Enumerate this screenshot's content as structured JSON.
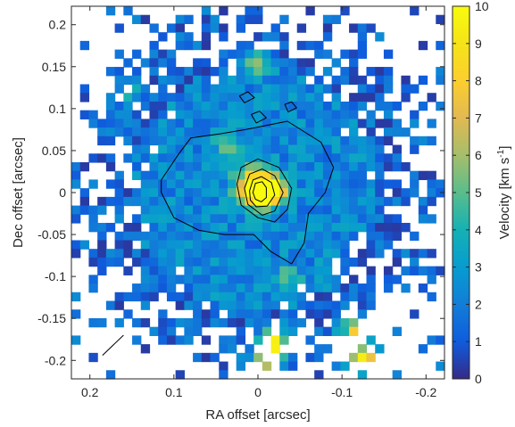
{
  "chart_data": {
    "type": "heatmap",
    "title": "",
    "xlabel": "RA offset [arcsec]",
    "ylabel": "Dec offset [arcsec]",
    "xlim": [
      0.222,
      -0.222
    ],
    "ylim": [
      -0.222,
      0.222
    ],
    "x_reversed": true,
    "x_ticks": [
      0.2,
      0.1,
      0,
      -0.1,
      -0.2
    ],
    "x_tick_labels": [
      "0.2",
      "0.1",
      "0",
      "-0.1",
      "-0.2"
    ],
    "y_ticks": [
      0.2,
      0.15,
      0.1,
      0.05,
      0,
      -0.05,
      -0.1,
      -0.15,
      -0.2
    ],
    "y_tick_labels": [
      "0.2",
      "0.15",
      "0.1",
      "0.05",
      "0",
      "-0.05",
      "-0.1",
      "-0.15",
      "-0.2"
    ],
    "pixel_size_arcsec": 0.0105,
    "colorbar": {
      "label_main": "Velocity [km s",
      "label_sup": "-1",
      "label_end": "]",
      "range": [
        0,
        10
      ],
      "colormap": "parula",
      "ticks": [
        0,
        1,
        2,
        3,
        4,
        5,
        6,
        7,
        8,
        9,
        10
      ],
      "tick_labels": [
        "0",
        "1",
        "2",
        "3",
        "4",
        "5",
        "6",
        "7",
        "8",
        "9",
        "10"
      ]
    },
    "field_model": {
      "base_velocity": 2.3,
      "core": {
        "x": 0.0,
        "y": 0.0,
        "peak": 10.0
      },
      "hotspots": [
        {
          "x": -0.02,
          "y": 0.0,
          "amp": 9
        },
        {
          "x": 0.0,
          "y": 0.155,
          "amp": 4
        },
        {
          "x": -0.12,
          "y": -0.17,
          "amp": 6
        },
        {
          "x": -0.13,
          "y": -0.205,
          "amp": 8
        },
        {
          "x": -0.02,
          "y": -0.185,
          "amp": 7
        },
        {
          "x": -0.015,
          "y": -0.205,
          "amp": 6
        },
        {
          "x": 0.03,
          "y": 0.05,
          "amp": 3
        },
        {
          "x": 0.15,
          "y": 0.12,
          "amp": 3
        },
        {
          "x": -0.04,
          "y": -0.11,
          "amp": 2.5
        }
      ]
    },
    "contours": [
      {
        "level": 1,
        "points": [
          [
            0.115,
            0.015
          ],
          [
            0.095,
            0.045
          ],
          [
            0.08,
            0.065
          ],
          [
            0.045,
            0.07
          ],
          [
            0.015,
            0.075
          ],
          [
            -0.035,
            0.085
          ],
          [
            -0.075,
            0.06
          ],
          [
            -0.09,
            0.03
          ],
          [
            -0.08,
            0.0
          ],
          [
            -0.06,
            -0.025
          ],
          [
            -0.055,
            -0.06
          ],
          [
            -0.04,
            -0.085
          ],
          [
            -0.015,
            -0.07
          ],
          [
            0.005,
            -0.05
          ],
          [
            0.04,
            -0.05
          ],
          [
            0.07,
            -0.045
          ],
          [
            0.1,
            -0.03
          ],
          [
            0.115,
            0.0
          ]
        ]
      },
      {
        "level": 2,
        "points": [
          [
            0.025,
            0.01
          ],
          [
            0.02,
            0.03
          ],
          [
            0.0,
            0.04
          ],
          [
            -0.025,
            0.03
          ],
          [
            -0.04,
            0.005
          ],
          [
            -0.035,
            -0.02
          ],
          [
            -0.02,
            -0.035
          ],
          [
            0.0,
            -0.03
          ],
          [
            0.02,
            -0.015
          ]
        ]
      },
      {
        "level": 3,
        "points": [
          [
            0.016,
            0.005
          ],
          [
            0.01,
            0.022
          ],
          [
            -0.005,
            0.028
          ],
          [
            -0.02,
            0.02
          ],
          [
            -0.03,
            0.0
          ],
          [
            -0.02,
            -0.022
          ],
          [
            -0.005,
            -0.027
          ],
          [
            0.012,
            -0.014
          ]
        ]
      },
      {
        "level": 4,
        "points": [
          [
            0.01,
            0.002
          ],
          [
            0.006,
            0.015
          ],
          [
            -0.004,
            0.019
          ],
          [
            -0.016,
            0.012
          ],
          [
            -0.02,
            -0.003
          ],
          [
            -0.011,
            -0.016
          ],
          [
            0.002,
            -0.017
          ],
          [
            0.009,
            -0.009
          ]
        ]
      },
      {
        "level": 5,
        "points": [
          [
            0.006,
            0.0
          ],
          [
            0.003,
            0.011
          ],
          [
            -0.005,
            0.013
          ],
          [
            -0.01,
            0.006
          ],
          [
            -0.01,
            -0.006
          ],
          [
            -0.004,
            -0.011
          ],
          [
            0.003,
            -0.008
          ]
        ]
      },
      {
        "level": 6,
        "points": [
          [
            0.022,
            0.115
          ],
          [
            0.012,
            0.12
          ],
          [
            0.004,
            0.113
          ],
          [
            0.016,
            0.107
          ]
        ]
      },
      {
        "level": 7,
        "points": [
          [
            0.008,
            0.093
          ],
          [
            -0.002,
            0.097
          ],
          [
            -0.01,
            0.089
          ],
          [
            0.002,
            0.083
          ]
        ]
      },
      {
        "level": 8,
        "points": [
          [
            -0.032,
            0.105
          ],
          [
            -0.04,
            0.108
          ],
          [
            -0.046,
            0.101
          ],
          [
            -0.036,
            0.096
          ]
        ]
      }
    ],
    "beam_marker": {
      "x1": 0.185,
      "y1": -0.194,
      "x2": 0.16,
      "y2": -0.17
    }
  }
}
